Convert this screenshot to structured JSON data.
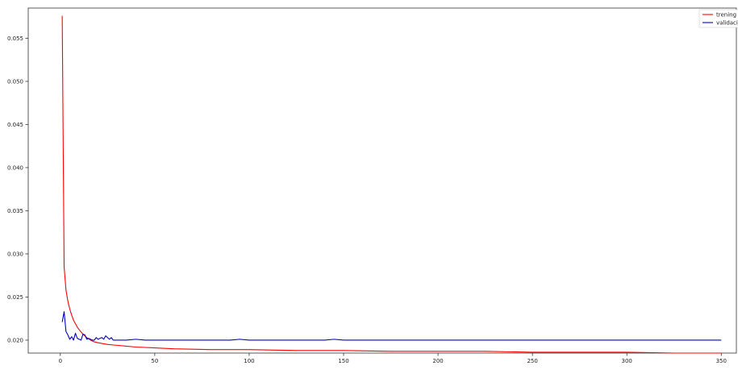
{
  "chart_data": {
    "type": "line",
    "title": "",
    "xlabel": "",
    "ylabel": "",
    "xlim": [
      -17,
      358
    ],
    "ylim": [
      0.0185,
      0.0585
    ],
    "x_ticks": [
      0,
      50,
      100,
      150,
      200,
      250,
      300,
      350
    ],
    "x_tick_labels": [
      "0",
      "50",
      "100",
      "150",
      "200",
      "250",
      "300",
      "350"
    ],
    "y_ticks": [
      0.02,
      0.025,
      0.03,
      0.035,
      0.04,
      0.045,
      0.05,
      0.055
    ],
    "y_tick_labels": [
      "0.020",
      "0.025",
      "0.030",
      "0.035",
      "0.040",
      "0.045",
      "0.050",
      "0.055"
    ],
    "grid": false,
    "legend_position": "top-right",
    "series": [
      {
        "name": "trening",
        "color": "#ff0000",
        "x": [
          1,
          2,
          3,
          4,
          5,
          6,
          7,
          8,
          9,
          10,
          12,
          14,
          16,
          18,
          20,
          25,
          30,
          35,
          40,
          50,
          60,
          80,
          100,
          125,
          150,
          175,
          200,
          225,
          250,
          275,
          300,
          325,
          350
        ],
        "values": [
          0.0576,
          0.0285,
          0.0258,
          0.0245,
          0.0236,
          0.0229,
          0.0223,
          0.0219,
          0.0215,
          0.0212,
          0.0207,
          0.0203,
          0.02,
          0.0198,
          0.0197,
          0.0195,
          0.0194,
          0.0193,
          0.0192,
          0.0191,
          0.019,
          0.0189,
          0.0189,
          0.0188,
          0.0188,
          0.0187,
          0.0187,
          0.0187,
          0.0186,
          0.0186,
          0.0186,
          0.0185,
          0.0185
        ]
      },
      {
        "name": "validacij",
        "color": "#0000cc",
        "x": [
          1,
          2,
          3,
          4,
          5,
          6,
          7,
          8,
          9,
          10,
          11,
          12,
          13,
          14,
          15,
          16,
          17,
          18,
          19,
          20,
          21,
          22,
          23,
          24,
          25,
          26,
          27,
          28,
          30,
          35,
          40,
          45,
          50,
          60,
          70,
          80,
          90,
          95,
          100,
          110,
          120,
          130,
          140,
          145,
          150,
          160,
          170,
          180,
          200,
          220,
          240,
          260,
          280,
          300,
          320,
          340,
          350
        ],
        "values": [
          0.0221,
          0.0233,
          0.021,
          0.0206,
          0.0201,
          0.0204,
          0.02,
          0.0208,
          0.0202,
          0.0201,
          0.02,
          0.0207,
          0.0206,
          0.0201,
          0.0202,
          0.0201,
          0.02,
          0.02,
          0.0203,
          0.0201,
          0.0202,
          0.0203,
          0.0201,
          0.0205,
          0.0203,
          0.0201,
          0.0203,
          0.02,
          0.02,
          0.02,
          0.0201,
          0.02,
          0.02,
          0.02,
          0.02,
          0.02,
          0.02,
          0.0201,
          0.02,
          0.02,
          0.02,
          0.02,
          0.02,
          0.0201,
          0.02,
          0.02,
          0.02,
          0.02,
          0.02,
          0.02,
          0.02,
          0.02,
          0.02,
          0.02,
          0.02,
          0.02,
          0.02
        ]
      }
    ]
  }
}
